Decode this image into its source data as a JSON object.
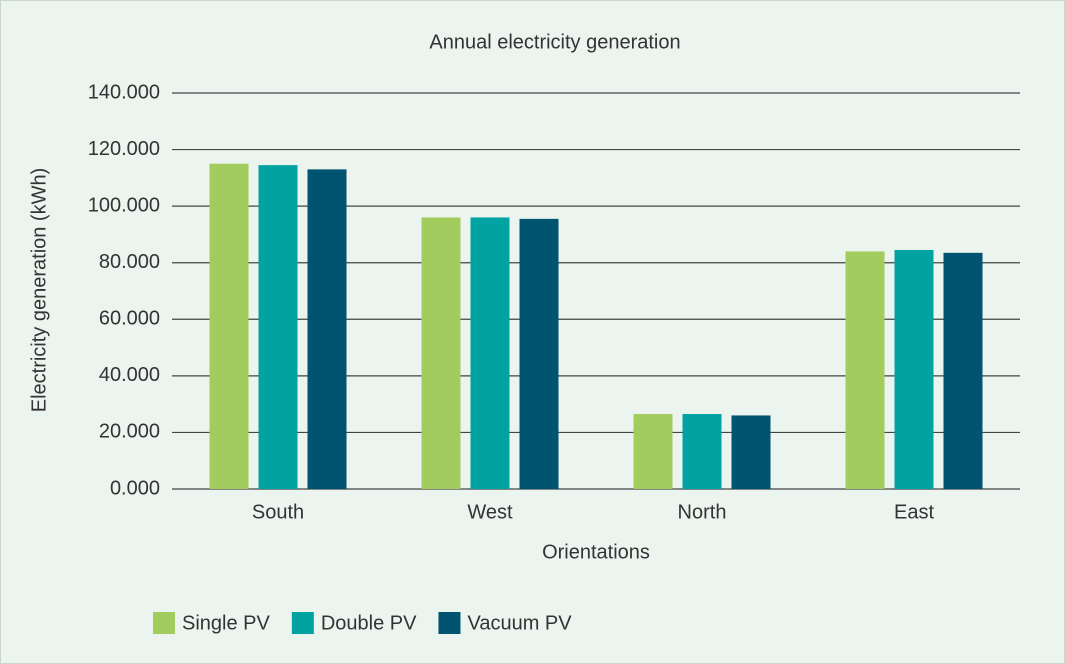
{
  "chart_data": {
    "type": "bar",
    "title": "Annual electricity generation",
    "x_label": "Orientations",
    "y_label": "Electricity generation (kWh)",
    "categories": [
      "South",
      "West",
      "North",
      "East"
    ],
    "series": [
      {
        "name": "Single PV",
        "color": "#a2cd5e",
        "values": [
          115000,
          96000,
          26500,
          84000
        ]
      },
      {
        "name": "Double PV",
        "color": "#00a3a1",
        "values": [
          114500,
          96000,
          26500,
          84500
        ]
      },
      {
        "name": "Vacuum PV",
        "color": "#00546f",
        "values": [
          113000,
          95500,
          26000,
          83500
        ]
      }
    ],
    "ylim": [
      0,
      140000
    ],
    "yticks": [
      {
        "value": 0,
        "label": "0.000"
      },
      {
        "value": 20000,
        "label": "20.000"
      },
      {
        "value": 40000,
        "label": "40.000"
      },
      {
        "value": 60000,
        "label": "60.000"
      },
      {
        "value": 80000,
        "label": "80.000"
      },
      {
        "value": 100000,
        "label": "100.000"
      },
      {
        "value": 120000,
        "label": "120.000"
      },
      {
        "value": 140000,
        "label": "140.000"
      }
    ],
    "grid": true,
    "legend": "bottom"
  }
}
